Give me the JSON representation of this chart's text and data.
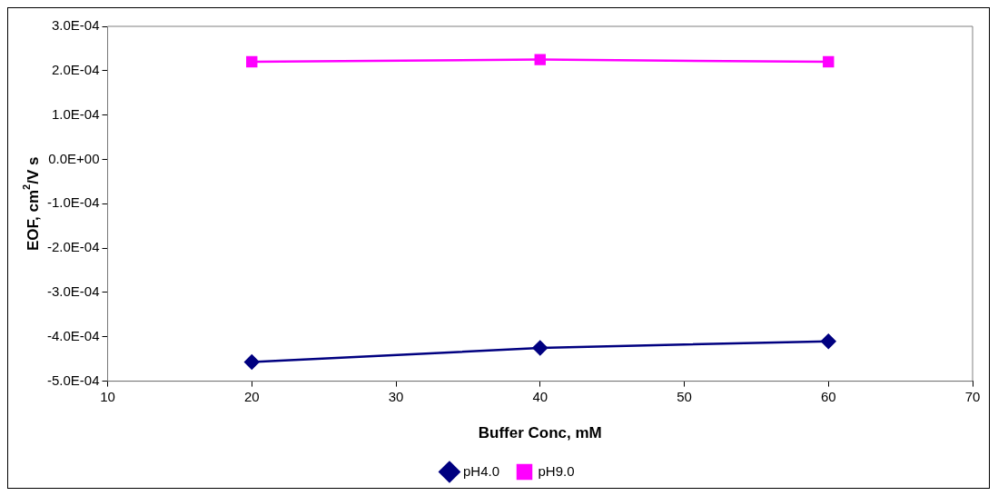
{
  "chart_data": {
    "type": "line",
    "xlabel": "Buffer Conc, mM",
    "ylabel": "EOF, cm$^{2}$/V s",
    "xlim": [
      10,
      70
    ],
    "xticks": [
      10,
      20,
      30,
      40,
      50,
      60,
      70
    ],
    "ylim": [
      -0.0005,
      0.0003
    ],
    "yticks": [
      {
        "value": -0.0005,
        "label": "-5.0E-04"
      },
      {
        "value": -0.0004,
        "label": "-4.0E-04"
      },
      {
        "value": -0.0003,
        "label": "-3.0E-04"
      },
      {
        "value": -0.0002,
        "label": "-2.0E-04"
      },
      {
        "value": -0.0001,
        "label": "-1.0E-04"
      },
      {
        "value": 0,
        "label": "0.0E+00"
      },
      {
        "value": 0.0001,
        "label": "1.0E-04"
      },
      {
        "value": 0.0002,
        "label": "2.0E-04"
      },
      {
        "value": 0.0003,
        "label": "3.0E-04"
      }
    ],
    "grid": false,
    "legend": "bottom",
    "series": [
      {
        "name": "pH4.0",
        "color": "#000080",
        "marker": "diamond",
        "x": [
          20,
          40,
          60
        ],
        "values": [
          -0.000457,
          -0.000425,
          -0.00041
        ]
      },
      {
        "name": "pH9.0",
        "color": "#ff00ff",
        "marker": "square",
        "x": [
          20,
          40,
          60
        ],
        "values": [
          0.00022,
          0.000225,
          0.00022
        ]
      }
    ]
  }
}
